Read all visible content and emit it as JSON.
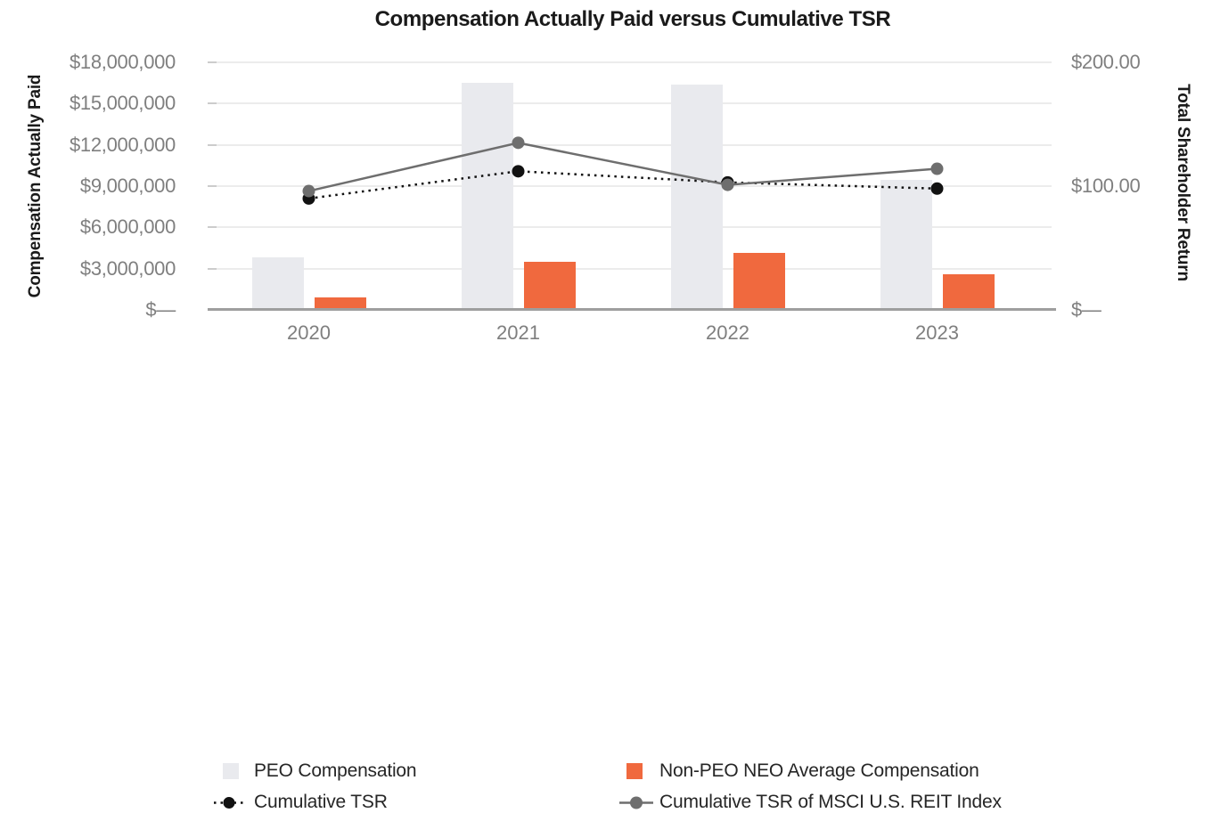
{
  "title": "Compensation Actually Paid versus Cumulative TSR",
  "left_axis": {
    "title": "Compensation Actually Paid",
    "ticks": [
      {
        "label": "$18,000,000",
        "value": 18000000
      },
      {
        "label": "$15,000,000",
        "value": 15000000
      },
      {
        "label": "$12,000,000",
        "value": 12000000
      },
      {
        "label": "$9,000,000",
        "value": 9000000
      },
      {
        "label": "$6,000,000",
        "value": 6000000
      },
      {
        "label": "$3,000,000",
        "value": 3000000
      },
      {
        "label": "$—",
        "value": 0
      }
    ]
  },
  "right_axis": {
    "title": "Total Shareholder Return",
    "ticks": [
      {
        "label": "$200.00",
        "value": 200
      },
      {
        "label": "$100.00",
        "value": 100
      },
      {
        "label": "$—",
        "value": 0
      }
    ]
  },
  "chart_data": {
    "type": "bar+line combo",
    "title": "Compensation Actually Paid versus Cumulative TSR",
    "categories": [
      "2020",
      "2021",
      "2022",
      "2023"
    ],
    "left_axis_label": "Compensation Actually Paid",
    "right_axis_label": "Total Shareholder Return",
    "left_axis_range": [
      0,
      18000000
    ],
    "right_axis_range": [
      0,
      200
    ],
    "grid": "horizontal",
    "legend_position": "bottom",
    "series": [
      {
        "name": "PEO Compensation",
        "type": "bar",
        "axis": "left",
        "color": "#E9EAEE",
        "values": [
          3800000,
          16500000,
          16350000,
          9450000
        ]
      },
      {
        "name": "Non-PEO NEO Average Compensation",
        "type": "bar",
        "axis": "left",
        "color": "#F0693E",
        "values": [
          900000,
          3500000,
          4150000,
          2600000
        ]
      },
      {
        "name": "Cumulative TSR",
        "type": "line",
        "style": "dotted",
        "axis": "right",
        "color": "#111111",
        "values": [
          90,
          112,
          103,
          98
        ]
      },
      {
        "name": "Cumulative TSR of MSCI U.S. REIT Index",
        "type": "line",
        "style": "solid",
        "axis": "right",
        "color": "#6E6E6E",
        "values": [
          96,
          135,
          101,
          114
        ]
      }
    ],
    "colors": {
      "gridline": "#ECECEC",
      "axis_line": "#9E9E9E",
      "tick_label": "#7f7f7f",
      "peo_bar": "#E9EAEE",
      "non_peo_bar": "#F0693E",
      "tsr_line": "#111111",
      "msci_line": "#6E6E6E"
    }
  }
}
